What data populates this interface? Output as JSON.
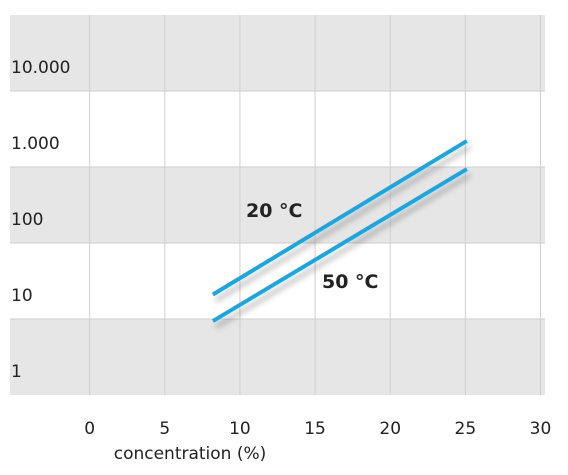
{
  "chart_data": {
    "type": "line",
    "x_label": "concentration (%)",
    "series": [
      {
        "name": "20 °C",
        "color": "#1ba6df",
        "x": [
          8.2,
          25.1
        ],
        "values": [
          21,
          2200
        ]
      },
      {
        "name": "50 °C",
        "color": "#1ba6df",
        "x": [
          8.2,
          25.1
        ],
        "values": [
          9.4,
          940
        ]
      }
    ],
    "xlim": [
      -5.3,
      30.3
    ],
    "xticks": [
      0,
      5,
      10,
      15,
      20,
      25,
      30
    ],
    "ylim": [
      1,
      100000
    ],
    "log_y": true,
    "yticks": [
      1,
      10,
      100,
      {
        "value": 1000,
        "label": "1.000"
      },
      {
        "value": 10000,
        "label": "10.000"
      }
    ],
    "band_colors": [
      "#e6e6e6",
      "#ffffff"
    ],
    "grid_color": "#cfcfcf",
    "grid": true
  }
}
